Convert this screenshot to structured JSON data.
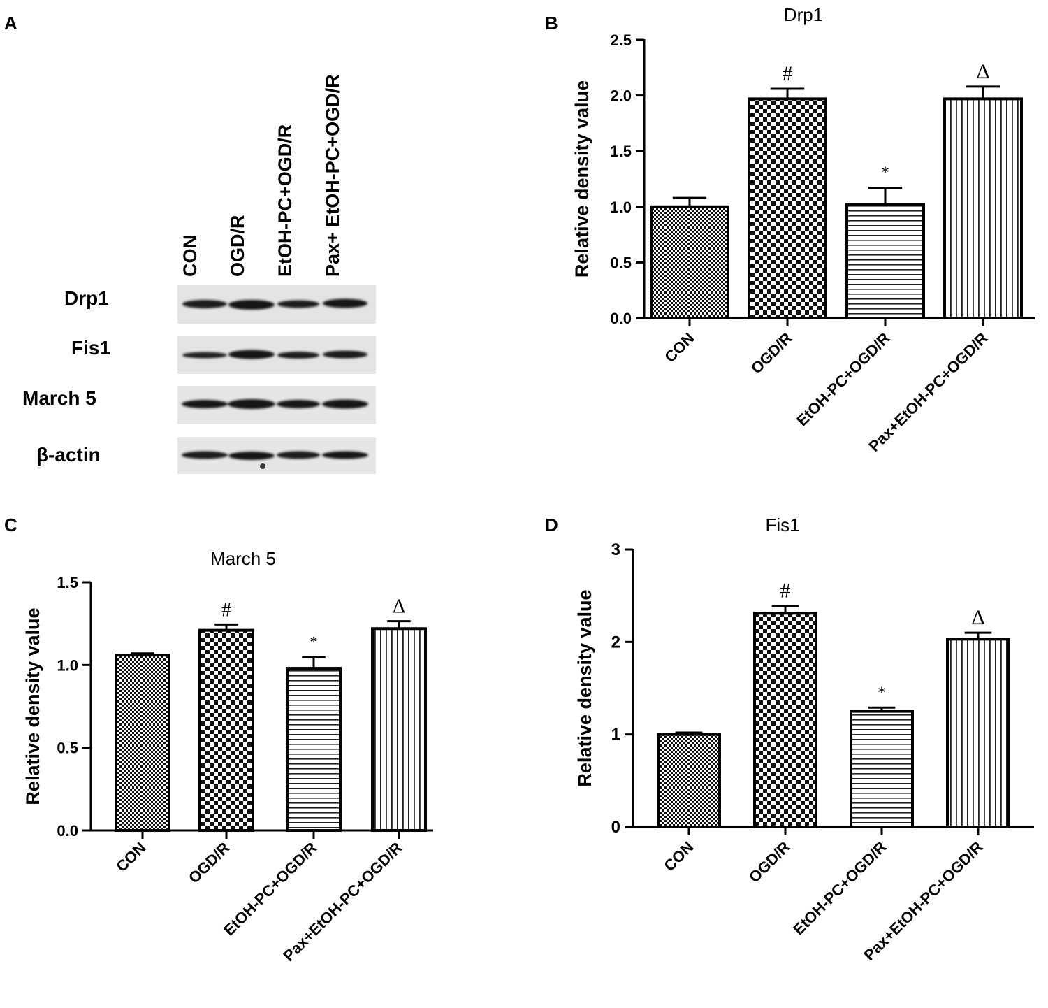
{
  "panels": {
    "a": "A",
    "b": "B",
    "c": "C",
    "d": "D"
  },
  "blot": {
    "lanes": [
      "CON",
      "OGD/R",
      "EtOH-PC+OGD/R",
      "Pax+ EtOH-PC+OGD/R"
    ],
    "rows": [
      "Drp1",
      "Fis1",
      "March 5",
      "β-actin"
    ]
  },
  "colors": {
    "ink": "#000000",
    "background": "#ffffff",
    "blot_bg": "#e6e6e6",
    "band": "#1a1a1a"
  },
  "chart_data": [
    {
      "id": "B",
      "type": "bar",
      "title": "Drp1",
      "xlabel": "",
      "ylabel": "Relative density value",
      "categories": [
        "CON",
        "OGD/R",
        "EtOH-PC+OGD/R",
        "Pax+EtOH-PC+OGD/R"
      ],
      "values": [
        1.0,
        1.97,
        1.02,
        1.97
      ],
      "errors": [
        0.08,
        0.09,
        0.15,
        0.11
      ],
      "annotations": [
        "",
        "#",
        "*",
        "Δ"
      ],
      "patterns": [
        "fine-check",
        "check",
        "hstripe",
        "vstripe"
      ],
      "ylim": [
        0,
        2.5
      ],
      "yticks": [
        "0.0",
        "0.5",
        "1.0",
        "1.5",
        "2.0",
        "2.5"
      ]
    },
    {
      "id": "C",
      "type": "bar",
      "title": "March 5",
      "xlabel": "",
      "ylabel": "Relative density value",
      "categories": [
        "CON",
        "OGD/R",
        "EtOH-PC+OGD/R",
        "Pax+EtOH-PC+OGD/R"
      ],
      "values": [
        1.06,
        1.21,
        0.98,
        1.22
      ],
      "errors": [
        0.01,
        0.035,
        0.07,
        0.045
      ],
      "annotations": [
        "",
        "#",
        "*",
        "Δ"
      ],
      "patterns": [
        "fine-check",
        "check",
        "hstripe",
        "vstripe"
      ],
      "ylim": [
        0,
        1.5
      ],
      "yticks": [
        "0.0",
        "0.5",
        "1.0",
        "1.5"
      ]
    },
    {
      "id": "D",
      "type": "bar",
      "title": "Fis1",
      "xlabel": "",
      "ylabel": "Relative density value",
      "categories": [
        "CON",
        "OGD/R",
        "EtOH-PC+OGD/R",
        "Pax+EtOH-PC+OGD/R"
      ],
      "values": [
        1.0,
        2.31,
        1.25,
        2.03
      ],
      "errors": [
        0.02,
        0.08,
        0.04,
        0.07
      ],
      "annotations": [
        "",
        "#",
        "*",
        "Δ"
      ],
      "patterns": [
        "fine-check",
        "check",
        "hstripe",
        "vstripe"
      ],
      "ylim": [
        0,
        3
      ],
      "yticks": [
        "0",
        "1",
        "2",
        "3"
      ]
    }
  ]
}
